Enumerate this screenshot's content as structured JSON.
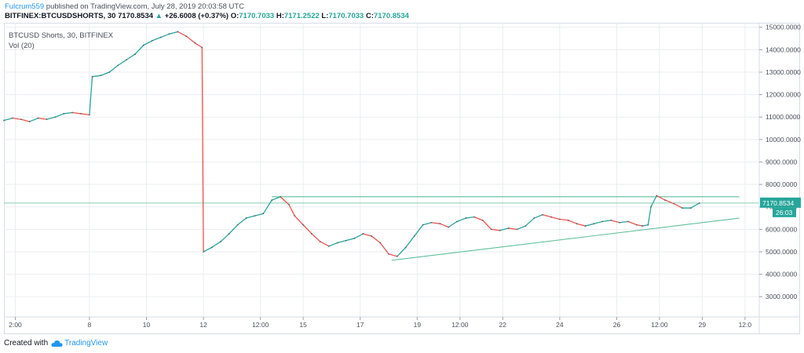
{
  "header": {
    "author": "Fulcrum559",
    "published_text": " published on TradingView.com, July 28, 2019 20:03:58 UTC"
  },
  "ohlc": {
    "symbol": "BITFINEX:BTCUSDSHORTS, 30",
    "last": "7170.8534",
    "arrow": "▲",
    "change": "+26.6008 (+0.37%)",
    "o_label": "O:",
    "o_value": "7170.7033",
    "h_label": "H:",
    "h_value": "7171.2522",
    "l_label": "L:",
    "l_value": "7170.7033",
    "c_label": "C:",
    "c_value": "7170.8534"
  },
  "legend": {
    "series": "BTCUSD Shorts, 30, BITFINEX",
    "volume": "Vol (20)"
  },
  "price_label": "7170.8534",
  "countdown_label": "26:03",
  "footer": {
    "created_with": "Created with",
    "brand": "TradingView"
  },
  "colors": {
    "up": "#26a69a",
    "down": "#ef5350",
    "trendline": "#5fbf9a",
    "grid": "#ebedf1",
    "brand": "#2196f3"
  },
  "chart_data": {
    "type": "line",
    "title": "BTCUSD Shorts, 30, BITFINEX",
    "ylim": [
      2100,
      15200
    ],
    "y_ticks": [
      "15000.0000",
      "14000.0000",
      "13000.0000",
      "12000.0000",
      "11000.0000",
      "10000.0000",
      "9000.0000",
      "8000.0000",
      "7000.0000",
      "6000.0000",
      "5000.0000",
      "4000.0000",
      "3000.0000"
    ],
    "y_tick_values": [
      15000,
      14000,
      13000,
      12000,
      11000,
      10000,
      9000,
      8000,
      7000,
      6000,
      5000,
      4000,
      3000
    ],
    "x_ticks": [
      "2:00",
      "8",
      "10",
      "12",
      "12:00",
      "15",
      "17",
      "19",
      "12:00",
      "22",
      "24",
      "26",
      "12:00",
      "29",
      "12:0"
    ],
    "x_tick_positions": [
      0.4,
      3,
      5,
      7,
      9,
      10.5,
      12.5,
      14.5,
      16,
      17.5,
      19.5,
      21.5,
      23,
      24.5,
      26
    ],
    "xlim": [
      0,
      26.5
    ],
    "x_unit": "days from start of visible range",
    "series": [
      {
        "values": [
          [
            0,
            10850
          ],
          [
            0.3,
            10950
          ],
          [
            0.6,
            10900
          ],
          [
            0.9,
            10800
          ],
          [
            1.2,
            10950
          ],
          [
            1.5,
            10900
          ],
          [
            1.8,
            11000
          ],
          [
            2.1,
            11150
          ],
          [
            2.4,
            11200
          ],
          [
            2.7,
            11150
          ],
          [
            3.0,
            11100
          ],
          [
            3.1,
            12800
          ],
          [
            3.4,
            12850
          ],
          [
            3.7,
            13000
          ],
          [
            4.0,
            13300
          ],
          [
            4.3,
            13550
          ],
          [
            4.6,
            13800
          ],
          [
            4.9,
            14200
          ],
          [
            5.2,
            14400
          ],
          [
            5.5,
            14550
          ],
          [
            5.8,
            14700
          ],
          [
            6.1,
            14800
          ],
          [
            6.4,
            14600
          ],
          [
            6.7,
            14300
          ],
          [
            6.95,
            14100
          ],
          [
            7.0,
            5000
          ],
          [
            7.3,
            5200
          ],
          [
            7.6,
            5450
          ],
          [
            7.9,
            5800
          ],
          [
            8.2,
            6200
          ],
          [
            8.5,
            6500
          ],
          [
            8.8,
            6600
          ],
          [
            9.1,
            6700
          ],
          [
            9.4,
            7300
          ],
          [
            9.7,
            7450
          ],
          [
            10.0,
            7100
          ],
          [
            10.2,
            6600
          ],
          [
            10.5,
            6200
          ],
          [
            10.8,
            5800
          ],
          [
            11.1,
            5450
          ],
          [
            11.4,
            5250
          ],
          [
            11.7,
            5400
          ],
          [
            12.0,
            5500
          ],
          [
            12.3,
            5600
          ],
          [
            12.6,
            5800
          ],
          [
            12.9,
            5700
          ],
          [
            13.2,
            5400
          ],
          [
            13.5,
            4900
          ],
          [
            13.8,
            4800
          ],
          [
            14.1,
            5200
          ],
          [
            14.4,
            5700
          ],
          [
            14.7,
            6200
          ],
          [
            15.0,
            6300
          ],
          [
            15.3,
            6250
          ],
          [
            15.6,
            6100
          ],
          [
            15.9,
            6350
          ],
          [
            16.2,
            6500
          ],
          [
            16.5,
            6550
          ],
          [
            16.8,
            6400
          ],
          [
            17.1,
            6000
          ],
          [
            17.4,
            5950
          ],
          [
            17.7,
            6050
          ],
          [
            18.0,
            6000
          ],
          [
            18.3,
            6150
          ],
          [
            18.6,
            6500
          ],
          [
            18.9,
            6650
          ],
          [
            19.2,
            6550
          ],
          [
            19.5,
            6450
          ],
          [
            19.8,
            6400
          ],
          [
            20.1,
            6250
          ],
          [
            20.4,
            6150
          ],
          [
            20.7,
            6250
          ],
          [
            21.0,
            6350
          ],
          [
            21.3,
            6400
          ],
          [
            21.6,
            6300
          ],
          [
            21.9,
            6350
          ],
          [
            22.2,
            6200
          ],
          [
            22.4,
            6150
          ],
          [
            22.6,
            6200
          ],
          [
            22.7,
            7000
          ],
          [
            22.9,
            7500
          ],
          [
            23.2,
            7300
          ],
          [
            23.5,
            7150
          ],
          [
            23.8,
            6950
          ],
          [
            24.1,
            6950
          ],
          [
            24.4,
            7170.8534
          ]
        ]
      }
    ],
    "annotations": [
      {
        "type": "horizontal_line",
        "y": 7450,
        "x_start": 9.4,
        "x_end": 25.8
      },
      {
        "type": "horizontal_line",
        "y": 7170.8534,
        "x_start": 0,
        "x_end": 26.5
      },
      {
        "type": "trendline",
        "points": [
          [
            13.6,
            4620
          ],
          [
            25.8,
            6500
          ]
        ]
      }
    ]
  }
}
